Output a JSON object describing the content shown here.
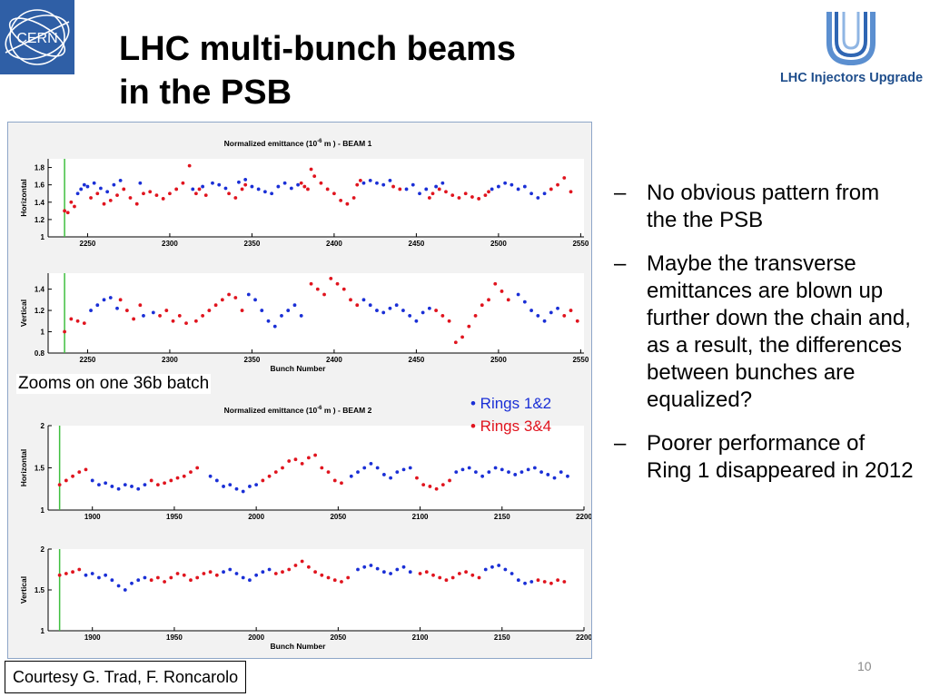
{
  "slide": {
    "title_line1": "LHC multi-bunch beams",
    "title_line2": "in the PSB",
    "cern_logo_text": "CERN",
    "liu_logo_text": "LHC Injectors Upgrade",
    "zoom_caption": "Zooms on one 36b batch",
    "legend": [
      {
        "text": "• Rings 1&2",
        "color": "#1a2fd6"
      },
      {
        "text": "• Rings 3&4",
        "color": "#e0141e"
      }
    ],
    "bullets": [
      {
        "dash": "–",
        "text": "No obvious pattern from the the PSB"
      },
      {
        "dash": "–",
        "text": "Maybe the transverse emittances are blown up further down the chain and, as a result, the differences between bunches are equalized?"
      },
      {
        "dash": "–",
        "text": "Poorer performance of Ring 1 disappeared in 2012"
      }
    ],
    "page_number": "10",
    "courtesy": "Courtesy G. Trad, F. Roncarolo"
  },
  "colors": {
    "rings_1_2": "#1a2fd6",
    "rings_3_4": "#e0141e",
    "marker_line": "#3fbf3f",
    "accent": "#2f5fa6"
  },
  "chart_data": [
    {
      "type": "scatter",
      "title_main": "Normalized emittance (10",
      "title_exp": "-6",
      "title_tail": " m )   - BEAM 1",
      "xlabel": "",
      "ylabel": "Horizontal",
      "xlim": [
        2226,
        2552
      ],
      "ylim": [
        1,
        1.9
      ],
      "xticks": [
        2250,
        2300,
        2350,
        2400,
        2450,
        2500,
        2550
      ],
      "yticks": [
        1,
        1.2,
        1.4,
        1.6,
        1.8
      ],
      "marker_x": 2236,
      "series": [
        {
          "name": "Rings 1&2",
          "color": "#1a2fd6",
          "x": [
            2244,
            2246,
            2248,
            2250,
            2254,
            2258,
            2262,
            2266,
            2270,
            2282,
            2314,
            2320,
            2326,
            2330,
            2334,
            2342,
            2346,
            2350,
            2354,
            2358,
            2362,
            2366,
            2370,
            2374,
            2378,
            2418,
            2422,
            2426,
            2430,
            2434,
            2444,
            2448,
            2452,
            2456,
            2462,
            2466,
            2496,
            2500,
            2504,
            2508,
            2512,
            2516,
            2520,
            2524,
            2528
          ],
          "y": [
            1.5,
            1.55,
            1.6,
            1.58,
            1.62,
            1.56,
            1.52,
            1.6,
            1.65,
            1.62,
            1.55,
            1.58,
            1.62,
            1.6,
            1.56,
            1.63,
            1.66,
            1.58,
            1.55,
            1.52,
            1.5,
            1.58,
            1.62,
            1.56,
            1.6,
            1.62,
            1.65,
            1.62,
            1.6,
            1.65,
            1.55,
            1.6,
            1.5,
            1.55,
            1.58,
            1.62,
            1.55,
            1.58,
            1.62,
            1.6,
            1.55,
            1.58,
            1.5,
            1.45,
            1.5
          ]
        },
        {
          "name": "Rings 3&4",
          "color": "#e0141e",
          "x": [
            2236,
            2238,
            2240,
            2242,
            2252,
            2256,
            2260,
            2264,
            2268,
            2272,
            2276,
            2280,
            2284,
            2288,
            2292,
            2296,
            2300,
            2304,
            2308,
            2312,
            2316,
            2318,
            2322,
            2336,
            2340,
            2344,
            2346,
            2380,
            2382,
            2384,
            2386,
            2388,
            2392,
            2396,
            2400,
            2404,
            2408,
            2412,
            2414,
            2416,
            2436,
            2440,
            2458,
            2460,
            2464,
            2468,
            2472,
            2476,
            2480,
            2484,
            2488,
            2492,
            2494,
            2532,
            2536,
            2540,
            2544
          ],
          "y": [
            1.3,
            1.28,
            1.4,
            1.35,
            1.45,
            1.5,
            1.38,
            1.42,
            1.48,
            1.55,
            1.45,
            1.38,
            1.5,
            1.52,
            1.48,
            1.44,
            1.5,
            1.55,
            1.62,
            1.82,
            1.5,
            1.55,
            1.48,
            1.5,
            1.45,
            1.55,
            1.6,
            1.62,
            1.58,
            1.55,
            1.78,
            1.7,
            1.62,
            1.55,
            1.5,
            1.42,
            1.38,
            1.45,
            1.6,
            1.65,
            1.58,
            1.55,
            1.45,
            1.5,
            1.55,
            1.52,
            1.48,
            1.45,
            1.5,
            1.46,
            1.44,
            1.48,
            1.52,
            1.55,
            1.6,
            1.68,
            1.52
          ]
        }
      ]
    },
    {
      "type": "scatter",
      "title_main": "",
      "title_exp": "",
      "title_tail": "",
      "xlabel": "Bunch Number",
      "ylabel": "Vertical",
      "xlim": [
        2226,
        2552
      ],
      "ylim": [
        0.8,
        1.55
      ],
      "xticks": [
        2250,
        2300,
        2350,
        2400,
        2450,
        2500,
        2550
      ],
      "yticks": [
        0.8,
        1,
        1.2,
        1.4
      ],
      "marker_x": 2236,
      "series": [
        {
          "name": "Rings 1&2",
          "color": "#1a2fd6",
          "x": [
            2252,
            2256,
            2260,
            2264,
            2268,
            2284,
            2290,
            2348,
            2352,
            2356,
            2360,
            2364,
            2368,
            2372,
            2376,
            2380,
            2418,
            2422,
            2426,
            2430,
            2434,
            2438,
            2442,
            2446,
            2450,
            2454,
            2458,
            2512,
            2516,
            2520,
            2524,
            2528,
            2532,
            2536
          ],
          "y": [
            1.2,
            1.25,
            1.3,
            1.32,
            1.22,
            1.15,
            1.18,
            1.35,
            1.3,
            1.2,
            1.1,
            1.05,
            1.15,
            1.2,
            1.25,
            1.15,
            1.3,
            1.25,
            1.2,
            1.18,
            1.22,
            1.25,
            1.2,
            1.15,
            1.1,
            1.18,
            1.22,
            1.35,
            1.28,
            1.2,
            1.15,
            1.1,
            1.18,
            1.22
          ]
        },
        {
          "name": "Rings 3&4",
          "color": "#e0141e",
          "x": [
            2236,
            2240,
            2244,
            2248,
            2270,
            2274,
            2278,
            2282,
            2294,
            2298,
            2302,
            2306,
            2310,
            2316,
            2320,
            2324,
            2328,
            2332,
            2336,
            2340,
            2344,
            2386,
            2390,
            2394,
            2398,
            2402,
            2406,
            2410,
            2414,
            2462,
            2466,
            2470,
            2474,
            2478,
            2482,
            2486,
            2490,
            2494,
            2498,
            2502,
            2506,
            2540,
            2544,
            2548
          ],
          "y": [
            1,
            1.12,
            1.1,
            1.08,
            1.3,
            1.2,
            1.12,
            1.25,
            1.15,
            1.2,
            1.1,
            1.15,
            1.08,
            1.1,
            1.15,
            1.2,
            1.25,
            1.3,
            1.35,
            1.32,
            1.2,
            1.45,
            1.4,
            1.35,
            1.5,
            1.45,
            1.4,
            1.3,
            1.25,
            1.2,
            1.15,
            1.1,
            0.9,
            0.95,
            1.05,
            1.15,
            1.25,
            1.3,
            1.45,
            1.38,
            1.3,
            1.15,
            1.2,
            1.1
          ]
        }
      ]
    },
    {
      "type": "scatter",
      "title_main": "Normalized emittance (10",
      "title_exp": "-6",
      "title_tail": " m )   - BEAM 2",
      "xlabel": "",
      "ylabel": "Horizontal",
      "xlim": [
        1873,
        2200
      ],
      "ylim": [
        1,
        2
      ],
      "xticks": [
        1900,
        1950,
        2000,
        2050,
        2100,
        2150,
        2200
      ],
      "yticks": [
        1,
        1.5,
        2
      ],
      "marker_x": 1880,
      "series": [
        {
          "name": "Rings 1&2",
          "color": "#1a2fd6",
          "x": [
            1900,
            1904,
            1908,
            1912,
            1916,
            1920,
            1924,
            1928,
            1932,
            1972,
            1976,
            1980,
            1984,
            1988,
            1992,
            1996,
            2000,
            2058,
            2062,
            2066,
            2070,
            2074,
            2078,
            2082,
            2086,
            2090,
            2094,
            2122,
            2126,
            2130,
            2134,
            2138,
            2142,
            2146,
            2150,
            2154,
            2158,
            2162,
            2166,
            2170,
            2174,
            2178,
            2182,
            2186,
            2190
          ],
          "y": [
            1.35,
            1.3,
            1.32,
            1.28,
            1.25,
            1.3,
            1.28,
            1.25,
            1.3,
            1.4,
            1.35,
            1.28,
            1.3,
            1.25,
            1.22,
            1.28,
            1.3,
            1.4,
            1.45,
            1.5,
            1.55,
            1.5,
            1.42,
            1.38,
            1.45,
            1.48,
            1.5,
            1.45,
            1.48,
            1.5,
            1.45,
            1.4,
            1.45,
            1.5,
            1.48,
            1.45,
            1.42,
            1.45,
            1.48,
            1.5,
            1.45,
            1.42,
            1.38,
            1.45,
            1.4
          ]
        },
        {
          "name": "Rings 3&4",
          "color": "#e0141e",
          "x": [
            1880,
            1884,
            1888,
            1892,
            1896,
            1936,
            1940,
            1944,
            1948,
            1952,
            1956,
            1960,
            1964,
            2004,
            2008,
            2012,
            2016,
            2020,
            2024,
            2028,
            2032,
            2036,
            2040,
            2044,
            2048,
            2052,
            2098,
            2102,
            2106,
            2110,
            2114,
            2118
          ],
          "y": [
            1.3,
            1.35,
            1.4,
            1.45,
            1.48,
            1.35,
            1.3,
            1.32,
            1.35,
            1.38,
            1.4,
            1.45,
            1.5,
            1.35,
            1.4,
            1.45,
            1.5,
            1.58,
            1.6,
            1.55,
            1.62,
            1.65,
            1.5,
            1.45,
            1.35,
            1.32,
            1.38,
            1.3,
            1.28,
            1.25,
            1.3,
            1.35
          ]
        }
      ]
    },
    {
      "type": "scatter",
      "title_main": "",
      "title_exp": "",
      "title_tail": "",
      "xlabel": "Bunch Number",
      "ylabel": "Vertical",
      "xlim": [
        1873,
        2200
      ],
      "ylim": [
        1,
        2
      ],
      "xticks": [
        1900,
        1950,
        2000,
        2050,
        2100,
        2150,
        2200
      ],
      "yticks": [
        1,
        1.5,
        2
      ],
      "marker_x": 1880,
      "series": [
        {
          "name": "Rings 1&2",
          "color": "#1a2fd6",
          "x": [
            1896,
            1900,
            1904,
            1908,
            1912,
            1916,
            1920,
            1924,
            1928,
            1932,
            1980,
            1984,
            1988,
            1992,
            1996,
            2000,
            2004,
            2008,
            2062,
            2066,
            2070,
            2074,
            2078,
            2082,
            2086,
            2090,
            2094,
            2140,
            2144,
            2148,
            2152,
            2156,
            2160,
            2164,
            2168
          ],
          "y": [
            1.68,
            1.7,
            1.65,
            1.68,
            1.62,
            1.55,
            1.5,
            1.58,
            1.62,
            1.65,
            1.72,
            1.75,
            1.7,
            1.65,
            1.62,
            1.68,
            1.72,
            1.75,
            1.75,
            1.78,
            1.8,
            1.76,
            1.72,
            1.7,
            1.75,
            1.78,
            1.72,
            1.75,
            1.78,
            1.8,
            1.75,
            1.7,
            1.62,
            1.58,
            1.6
          ]
        },
        {
          "name": "Rings 3&4",
          "color": "#e0141e",
          "x": [
            1880,
            1884,
            1888,
            1892,
            1936,
            1940,
            1944,
            1948,
            1952,
            1956,
            1960,
            1964,
            1968,
            1972,
            1976,
            2012,
            2016,
            2020,
            2024,
            2028,
            2032,
            2036,
            2040,
            2044,
            2048,
            2052,
            2056,
            2100,
            2104,
            2108,
            2112,
            2116,
            2120,
            2124,
            2128,
            2132,
            2136,
            2172,
            2176,
            2180,
            2184,
            2188
          ],
          "y": [
            1.68,
            1.7,
            1.72,
            1.75,
            1.62,
            1.65,
            1.6,
            1.65,
            1.7,
            1.68,
            1.62,
            1.65,
            1.7,
            1.72,
            1.68,
            1.7,
            1.72,
            1.75,
            1.8,
            1.85,
            1.78,
            1.72,
            1.68,
            1.65,
            1.62,
            1.6,
            1.65,
            1.7,
            1.72,
            1.68,
            1.65,
            1.62,
            1.65,
            1.7,
            1.72,
            1.68,
            1.65,
            1.62,
            1.6,
            1.58,
            1.62,
            1.6
          ]
        }
      ]
    }
  ]
}
